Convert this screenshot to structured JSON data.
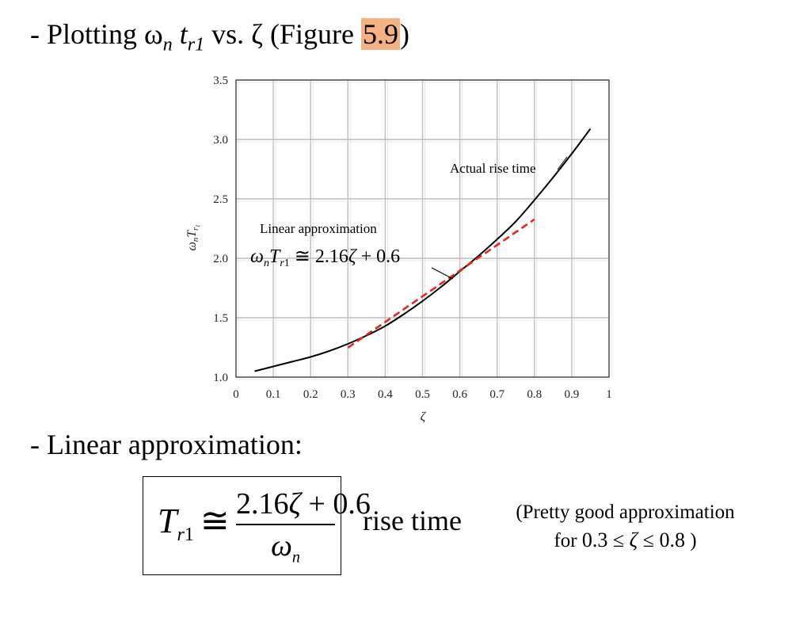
{
  "heading": {
    "prefix": "- Plotting ",
    "omega": "ω",
    "omega_sub": "n",
    "t": " t",
    "t_sub": "r1",
    "vs": " vs. ",
    "zeta": "ζ",
    "figure_open": "  (Figure ",
    "figure_number": "5.9",
    "figure_close": ")",
    "highlight_color": "#f7b283"
  },
  "chart_data": {
    "type": "line",
    "xlabel": "ζ",
    "ylabel": "ωnTr1",
    "xlim": [
      0,
      1
    ],
    "ylim": [
      1.0,
      3.5
    ],
    "grid": true,
    "x_ticks": [
      "0",
      "0.1",
      "0.2",
      "0.3",
      "0.4",
      "0.5",
      "0.6",
      "0.7",
      "0.8",
      "0.9",
      "1"
    ],
    "y_ticks": [
      "1.0",
      "1.5",
      "2.0",
      "2.5",
      "3.0",
      "3.5"
    ],
    "series": [
      {
        "name": "Actual rise time",
        "style": "solid",
        "color": "#000000",
        "x": [
          0.05,
          0.1,
          0.15,
          0.2,
          0.25,
          0.3,
          0.35,
          0.4,
          0.45,
          0.5,
          0.55,
          0.6,
          0.65,
          0.7,
          0.75,
          0.8,
          0.85,
          0.9,
          0.95
        ],
        "y": [
          1.05,
          1.09,
          1.13,
          1.17,
          1.22,
          1.28,
          1.35,
          1.43,
          1.53,
          1.64,
          1.76,
          1.89,
          2.02,
          2.16,
          2.31,
          2.49,
          2.68,
          2.88,
          3.09
        ]
      },
      {
        "name": "Linear approximation",
        "style": "dashed",
        "color": "#e8261d",
        "x": [
          0.3,
          0.8
        ],
        "y": [
          1.248,
          2.328
        ]
      }
    ],
    "annotations": {
      "actual_label": "Actual rise time",
      "linear_label": "Linear approximation",
      "linear_equation": "ωnTr1 ≅ 2.16ζ + 0.6"
    }
  },
  "line2": "- Linear approximation:",
  "formula": {
    "lhs_main": "T",
    "lhs_sub_r": "r",
    "lhs_sub_1": "1",
    "approx": "≅",
    "numerator_a": "2.16",
    "numerator_zeta": "ζ",
    "numerator_b": " + 0.6",
    "denominator_main": "ω",
    "denominator_sub": "n"
  },
  "rise_label": "rise time",
  "note": {
    "line1": "(Pretty good approximation",
    "for": "for ",
    "range_a": "0.3 ≤ ",
    "range_zeta": "ζ",
    "range_b": " ≤ 0.8",
    "close": " )"
  }
}
